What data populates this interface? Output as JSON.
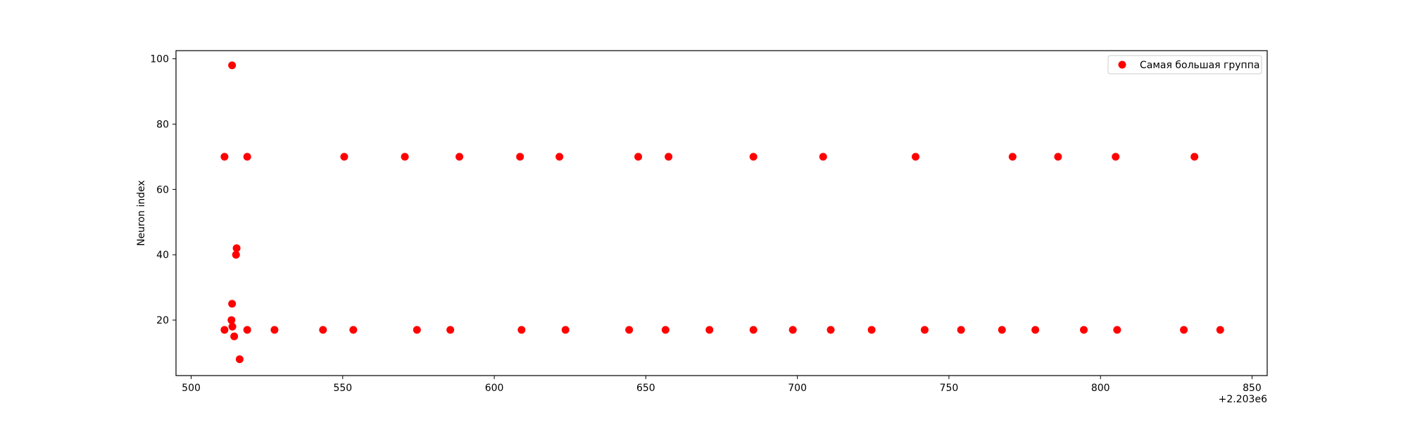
{
  "chart_data": {
    "type": "scatter",
    "title": "",
    "xlabel": "",
    "ylabel": "Neuron index",
    "x_offset_label": "+2.203e6",
    "xlim": [
      495,
      855
    ],
    "ylim": [
      3,
      102.5
    ],
    "x_ticks": [
      500,
      550,
      600,
      650,
      700,
      750,
      800,
      850
    ],
    "x_tick_labels": [
      "500",
      "550",
      "600",
      "650",
      "700",
      "750",
      "800",
      "850"
    ],
    "y_ticks": [
      20,
      40,
      60,
      80,
      100
    ],
    "y_tick_labels": [
      "20",
      "40",
      "60",
      "80",
      "100"
    ],
    "grid": false,
    "legend": {
      "position": "top-right",
      "entries": [
        "Самая большая группа"
      ]
    },
    "series": [
      {
        "name": "Самая большая группа",
        "color": "#ff0000",
        "points": [
          {
            "x": 511,
            "y": 70
          },
          {
            "x": 518.5,
            "y": 70
          },
          {
            "x": 550.5,
            "y": 70
          },
          {
            "x": 570.5,
            "y": 70
          },
          {
            "x": 588.5,
            "y": 70
          },
          {
            "x": 608.5,
            "y": 70
          },
          {
            "x": 621.5,
            "y": 70
          },
          {
            "x": 647.5,
            "y": 70
          },
          {
            "x": 657.5,
            "y": 70
          },
          {
            "x": 685.5,
            "y": 70
          },
          {
            "x": 708.5,
            "y": 70
          },
          {
            "x": 739,
            "y": 70
          },
          {
            "x": 771,
            "y": 70
          },
          {
            "x": 786,
            "y": 70
          },
          {
            "x": 805,
            "y": 70
          },
          {
            "x": 831,
            "y": 70
          },
          {
            "x": 513.5,
            "y": 98
          },
          {
            "x": 515,
            "y": 42
          },
          {
            "x": 514.8,
            "y": 40
          },
          {
            "x": 513.5,
            "y": 25
          },
          {
            "x": 513.3,
            "y": 20
          },
          {
            "x": 513.6,
            "y": 18
          },
          {
            "x": 514.2,
            "y": 15
          },
          {
            "x": 516,
            "y": 8
          },
          {
            "x": 511,
            "y": 17
          },
          {
            "x": 518.5,
            "y": 17
          },
          {
            "x": 527.5,
            "y": 17
          },
          {
            "x": 543.5,
            "y": 17
          },
          {
            "x": 553.5,
            "y": 17
          },
          {
            "x": 574.5,
            "y": 17
          },
          {
            "x": 585.5,
            "y": 17
          },
          {
            "x": 609,
            "y": 17
          },
          {
            "x": 623.5,
            "y": 17
          },
          {
            "x": 644.5,
            "y": 17
          },
          {
            "x": 656.5,
            "y": 17
          },
          {
            "x": 671,
            "y": 17
          },
          {
            "x": 685.5,
            "y": 17
          },
          {
            "x": 698.5,
            "y": 17
          },
          {
            "x": 711,
            "y": 17
          },
          {
            "x": 724.5,
            "y": 17
          },
          {
            "x": 742,
            "y": 17
          },
          {
            "x": 754,
            "y": 17
          },
          {
            "x": 767.5,
            "y": 17
          },
          {
            "x": 778.5,
            "y": 17
          },
          {
            "x": 794.5,
            "y": 17
          },
          {
            "x": 805.5,
            "y": 17
          },
          {
            "x": 827.5,
            "y": 17
          },
          {
            "x": 839.5,
            "y": 17
          }
        ]
      }
    ]
  }
}
